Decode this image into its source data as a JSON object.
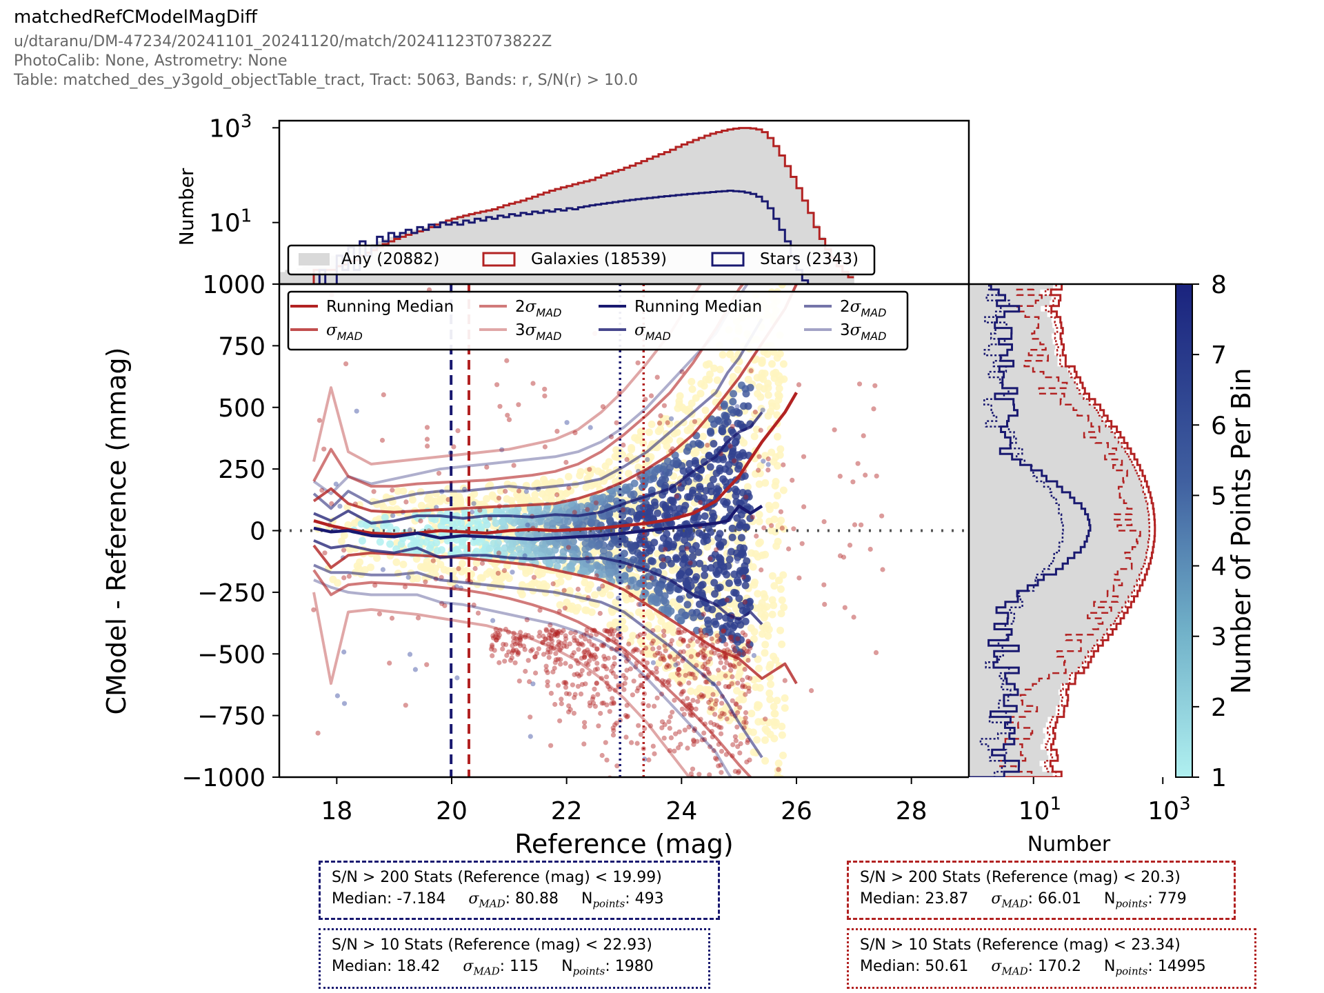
{
  "header": {
    "title": "matchedRefCModelMagDiff",
    "line1": "u/dtaranu/DM-47234/20241101_20241120/match/20241123T073822Z",
    "line2": "PhotoCalib: None, Astrometry: None",
    "line3": "Table: matched_des_y3gold_objectTable_tract, Tract: 5063, Bands: r, S/N(r) > 10.0"
  },
  "colors": {
    "galaxy": "#b22222",
    "star": "#191970",
    "any_hist": "#d9d9d9",
    "hex_low": "#b0f0f0",
    "hex_high": "#1a237e",
    "hex_yellow": "#fff5c0"
  },
  "chart_data": [
    {
      "type": "scatter",
      "name": "main",
      "xlabel": "Reference (mag)",
      "ylabel": "CModel - Reference (mmag)",
      "xlim": [
        17.0,
        29.0
      ],
      "ylim": [
        -1000,
        1000
      ],
      "xticks": [
        18,
        20,
        22,
        24,
        26,
        28
      ],
      "yticks": [
        -1000,
        -750,
        -500,
        -250,
        0,
        250,
        500,
        750,
        1000
      ],
      "zero_line": 0,
      "vlines": [
        {
          "x": 19.99,
          "color": "star",
          "style": "dashed"
        },
        {
          "x": 20.3,
          "color": "galaxy",
          "style": "dashed"
        },
        {
          "x": 22.93,
          "color": "star",
          "style": "dotted"
        },
        {
          "x": 23.34,
          "color": "galaxy",
          "style": "dotted"
        }
      ],
      "legend_galaxy": [
        "Running Median",
        "σMAD",
        "2σMAD",
        "3σMAD"
      ],
      "legend_star": [
        "Running Median",
        "σMAD",
        "2σMAD",
        "3σMAD"
      ],
      "galaxy_lines": {
        "x": [
          17.6,
          17.9,
          18.2,
          18.6,
          19.0,
          19.4,
          19.8,
          20.2,
          20.6,
          21.0,
          21.4,
          21.8,
          22.2,
          22.6,
          23.0,
          23.4,
          23.8,
          24.2,
          24.6,
          25.0,
          25.4,
          25.8,
          26.0
        ],
        "median": [
          40,
          20,
          5,
          -10,
          -15,
          -10,
          0,
          -5,
          -10,
          0,
          5,
          0,
          5,
          10,
          20,
          30,
          45,
          70,
          120,
          220,
          360,
          480,
          560
        ],
        "sigma_hi": [
          120,
          170,
          110,
          80,
          75,
          80,
          85,
          90,
          95,
          100,
          105,
          110,
          130,
          160,
          200,
          250,
          310,
          390,
          500,
          620,
          760,
          900,
          1000
        ],
        "sigma_lo": [
          -60,
          -150,
          -100,
          -90,
          -95,
          -100,
          -105,
          -110,
          -120,
          -130,
          -140,
          -160,
          -180,
          -200,
          -240,
          -300,
          -360,
          -420,
          -480,
          -520,
          -600,
          -540,
          -620
        ],
        "two_hi": [
          200,
          330,
          220,
          180,
          180,
          190,
          195,
          200,
          205,
          215,
          225,
          240,
          270,
          320,
          390,
          470,
          560,
          680,
          820,
          980,
          1100,
          1200,
          1300
        ],
        "two_lo": [
          -160,
          -260,
          -220,
          -210,
          -215,
          -220,
          -230,
          -240,
          -255,
          -275,
          -300,
          -330,
          -370,
          -420,
          -480,
          -560,
          -650,
          -740,
          -840,
          -950,
          -1050,
          -1150,
          -1250
        ],
        "three_hi": [
          280,
          580,
          320,
          270,
          280,
          290,
          300,
          310,
          320,
          330,
          350,
          370,
          410,
          480,
          570,
          680,
          800,
          950,
          1100,
          1250,
          1400,
          1550,
          1700
        ],
        "three_lo": [
          -250,
          -620,
          -330,
          -320,
          -330,
          -340,
          -355,
          -370,
          -385,
          -410,
          -440,
          -480,
          -530,
          -600,
          -680,
          -780,
          -900,
          -1020,
          -1150,
          -1280,
          -1400,
          -1500,
          -1600
        ]
      },
      "star_lines": {
        "x": [
          17.6,
          17.9,
          18.2,
          18.6,
          19.0,
          19.4,
          19.8,
          20.2,
          20.6,
          21.0,
          21.4,
          21.8,
          22.2,
          22.6,
          23.0,
          23.4,
          23.8,
          24.2,
          24.6,
          24.8,
          25.0,
          25.2,
          25.4
        ],
        "median": [
          10,
          -5,
          0,
          -20,
          -25,
          -10,
          -30,
          -20,
          -25,
          -30,
          -35,
          -30,
          -25,
          -20,
          -10,
          0,
          10,
          20,
          30,
          40,
          100,
          70,
          100
        ],
        "sigma_hi": [
          70,
          40,
          80,
          30,
          40,
          60,
          60,
          50,
          60,
          60,
          55,
          65,
          60,
          75,
          110,
          140,
          170,
          240,
          300,
          360,
          400,
          420,
          480
        ],
        "sigma_lo": [
          -40,
          -70,
          -60,
          -80,
          -90,
          -70,
          -110,
          -100,
          -100,
          -110,
          -115,
          -110,
          -115,
          -110,
          -130,
          -160,
          -200,
          -260,
          -300,
          -340,
          -360,
          -330,
          -380
        ],
        "two_hi": [
          150,
          90,
          160,
          110,
          130,
          150,
          160,
          160,
          170,
          180,
          170,
          180,
          190,
          210,
          260,
          320,
          400,
          480,
          560,
          640,
          700,
          780,
          860
        ],
        "two_lo": [
          -140,
          -170,
          -170,
          -180,
          -180,
          -170,
          -200,
          -210,
          -220,
          -230,
          -240,
          -250,
          -270,
          -290,
          -330,
          -400,
          -470,
          -550,
          -630,
          -700,
          -780,
          -850,
          -920
        ],
        "three_hi": [
          200,
          150,
          220,
          190,
          210,
          230,
          250,
          260,
          270,
          280,
          290,
          300,
          320,
          360,
          420,
          500,
          600,
          700,
          800,
          880,
          950,
          1020,
          1100
        ],
        "three_lo": [
          -200,
          -230,
          -250,
          -260,
          -260,
          -260,
          -290,
          -300,
          -320,
          -340,
          -360,
          -380,
          -410,
          -450,
          -510,
          -600,
          -700,
          -800,
          -900,
          -980,
          -1050,
          -1100,
          -1150
        ]
      }
    },
    {
      "type": "bar",
      "name": "top_histogram",
      "ylabel": "Number",
      "yscale": "log",
      "yticks": [
        10,
        1000
      ],
      "ytick_labels": [
        "10^1",
        "10^3"
      ],
      "xlim": [
        17.0,
        29.0
      ],
      "legend": [
        "Any (20882)",
        "Galaxies (18539)",
        "Stars (2343)"
      ],
      "bin_start": 17.0,
      "bin_width": 0.1,
      "any": [
        0.9,
        1,
        1,
        1.1,
        1.2,
        1.3,
        1.5,
        1.6,
        1.8,
        2,
        2.2,
        2.4,
        2.6,
        2.8,
        3,
        3.2,
        3.5,
        4,
        4.5,
        5,
        5.5,
        6,
        6.5,
        7,
        7.5,
        8,
        9,
        10,
        11,
        12,
        13,
        14,
        15,
        16,
        17,
        18,
        19,
        20,
        22,
        24,
        26,
        28,
        30,
        33,
        36,
        40,
        44,
        48,
        52,
        56,
        60,
        65,
        70,
        75,
        80,
        90,
        100,
        110,
        120,
        130,
        145,
        160,
        180,
        200,
        225,
        250,
        280,
        310,
        350,
        400,
        450,
        500,
        560,
        620,
        690,
        760,
        820,
        880,
        930,
        970,
        1000,
        1000,
        980,
        930,
        820,
        620,
        420,
        270,
        160,
        95,
        55,
        30,
        17,
        9,
        5,
        3,
        2,
        1.3,
        1,
        0.8
      ],
      "galaxies": [
        0,
        0,
        0,
        0,
        0,
        0,
        1,
        1,
        1,
        1,
        1.2,
        1.3,
        1.5,
        1.6,
        2,
        2.3,
        2.6,
        3,
        3.5,
        4,
        4.5,
        5,
        5.5,
        6,
        6.5,
        7,
        8,
        9,
        10,
        11,
        12,
        13,
        14,
        15,
        16,
        17,
        18,
        19,
        21,
        23,
        25,
        27,
        29,
        32,
        35,
        39,
        43,
        47,
        51,
        55,
        59,
        64,
        69,
        74,
        79,
        89,
        99,
        109,
        119,
        129,
        144,
        159,
        178,
        198,
        222,
        247,
        277,
        306,
        345,
        395,
        445,
        494,
        553,
        612,
        680,
        750,
        810,
        870,
        920,
        960,
        990,
        990,
        970,
        920,
        810,
        610,
        410,
        260,
        155,
        92,
        53,
        29,
        16,
        8,
        4.5,
        2.7,
        1.8,
        1.2,
        0.9,
        0.7
      ],
      "stars": [
        0,
        0,
        0,
        0,
        0,
        0,
        0,
        1,
        0,
        0,
        2,
        1,
        3,
        1,
        4,
        2,
        3,
        5,
        4,
        6,
        5,
        6,
        7,
        6,
        8,
        7,
        9,
        8,
        10,
        9,
        10,
        9,
        11,
        10,
        12,
        11,
        13,
        12,
        14,
        13,
        15,
        14,
        16,
        15,
        17,
        16,
        18,
        17,
        19,
        18,
        20,
        19,
        21,
        22,
        23,
        24,
        25,
        26,
        27,
        28,
        29,
        30,
        31,
        32,
        33,
        34,
        35,
        36,
        37,
        38,
        39,
        40,
        41,
        42,
        43,
        44,
        45,
        46,
        47,
        46,
        45,
        43,
        40,
        35,
        28,
        20,
        12,
        7,
        4,
        2,
        1,
        0.6,
        0,
        0,
        0,
        0,
        0,
        0,
        0,
        0
      ]
    },
    {
      "type": "bar",
      "name": "side_histogram",
      "orientation": "horizontal",
      "xlabel": "Number",
      "xscale": "log",
      "xticks": [
        10,
        1000
      ],
      "xtick_labels": [
        "10^1",
        "10^3"
      ],
      "ylim": [
        -1000,
        1000
      ]
    },
    {
      "type": "heatmap",
      "name": "colorbar",
      "label": "Number of Points Per Bin",
      "range": [
        1,
        8
      ],
      "ticks": [
        1,
        2,
        3,
        4,
        5,
        6,
        7,
        8
      ]
    }
  ],
  "stats": {
    "star_bright": {
      "title": "S/N > 200 Stats (Reference (mag) < 19.99)",
      "median": "Median: -7.184",
      "sigma": ": 80.88",
      "npoints": ": 493"
    },
    "star_faint": {
      "title": "S/N > 10 Stats (Reference (mag) < 22.93)",
      "median": "Median: 18.42",
      "sigma": ": 115",
      "npoints": ": 1980"
    },
    "gal_bright": {
      "title": "S/N > 200 Stats (Reference (mag) < 20.3)",
      "median": "Median: 23.87",
      "sigma": ": 66.01",
      "npoints": ": 779"
    },
    "gal_faint": {
      "title": "S/N > 10 Stats (Reference (mag) < 23.34)",
      "median": "Median: 50.61",
      "sigma": ": 170.2",
      "npoints": ": 14995"
    },
    "sigma_symbol": "σ",
    "sigma_sub": "MAD",
    "n_symbol": "N",
    "n_sub": "points"
  }
}
